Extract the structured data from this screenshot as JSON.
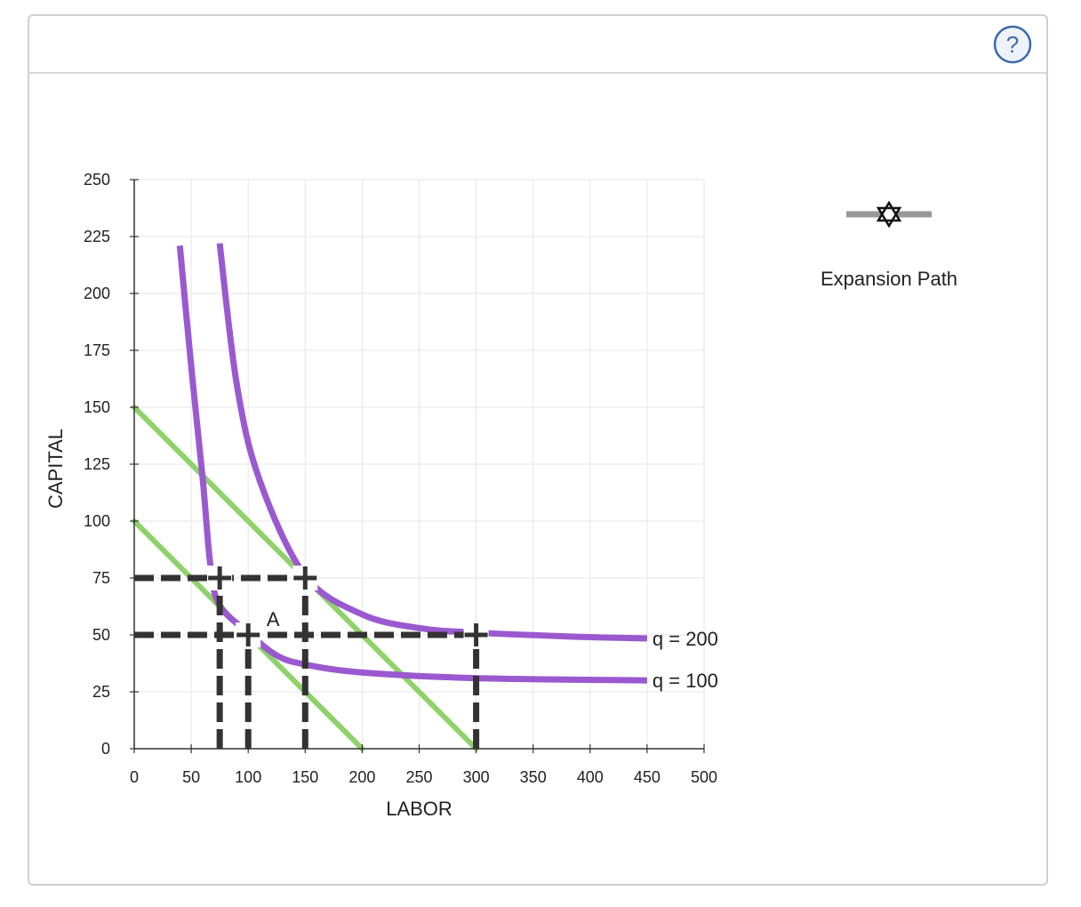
{
  "colors": {
    "isoquant": "#9b59d0",
    "isocost": "#8fd16a",
    "dashed": "#333333",
    "grid": "#e6e6e6",
    "axis": "#333333",
    "legend_line": "#999999",
    "help_icon": "#3b6aa8"
  },
  "help_button": {
    "icon": "question-icon",
    "symbol": "?"
  },
  "legend": {
    "label": "Expansion Path",
    "icon": "star-of-david-icon"
  },
  "chart_data": {
    "type": "line",
    "title": "",
    "xlabel": "LABOR",
    "ylabel": "CAPITAL",
    "xlim": [
      0,
      500
    ],
    "ylim": [
      0,
      250
    ],
    "xticks": [
      0,
      50,
      100,
      150,
      200,
      250,
      300,
      350,
      400,
      450,
      500
    ],
    "yticks": [
      0,
      25,
      50,
      75,
      100,
      125,
      150,
      175,
      200,
      225,
      250
    ],
    "grid": true,
    "legend_placement": "top-right",
    "isoquants": [
      {
        "name": "q = 100",
        "asymptote_x": 37,
        "asymptote_y": 30,
        "points": [
          [
            40,
            221
          ],
          [
            50,
            168
          ],
          [
            60,
            119
          ],
          [
            67,
            80
          ],
          [
            75,
            63
          ],
          [
            100,
            51
          ],
          [
            125,
            41
          ],
          [
            150,
            37
          ],
          [
            200,
            33.5
          ],
          [
            300,
            31
          ],
          [
            450,
            30
          ]
        ]
      },
      {
        "name": "q = 200",
        "asymptote_x": 67,
        "asymptote_y": 46,
        "points": [
          [
            75,
            222
          ],
          [
            90,
            160
          ],
          [
            110,
            118
          ],
          [
            150,
            76
          ],
          [
            200,
            59
          ],
          [
            250,
            53
          ],
          [
            300,
            51
          ],
          [
            400,
            49
          ],
          [
            450,
            48.5
          ]
        ]
      }
    ],
    "isocost_lines": [
      {
        "k_intercept": 100,
        "l_intercept": 200
      },
      {
        "k_intercept": 150,
        "l_intercept": 300
      }
    ],
    "points": [
      {
        "label": "A",
        "x": 100,
        "y": 50
      },
      {
        "label": "",
        "x": 75,
        "y": 75
      },
      {
        "label": "",
        "x": 150,
        "y": 75
      },
      {
        "label": "",
        "x": 300,
        "y": 50
      }
    ],
    "guide_lines": {
      "horizontal": [
        75,
        50
      ],
      "vertical": [
        75,
        100,
        150,
        300
      ]
    }
  }
}
